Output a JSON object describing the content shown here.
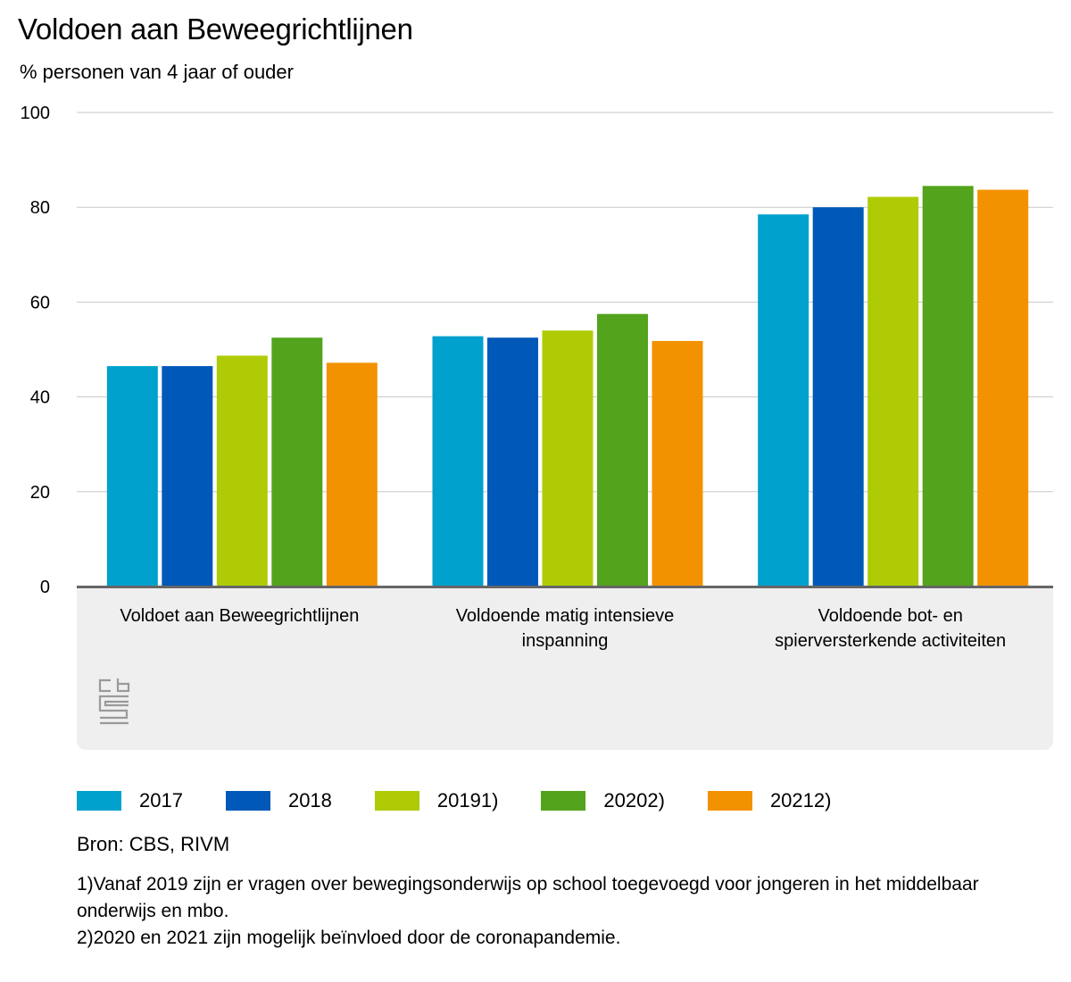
{
  "chart_data": {
    "type": "bar",
    "title": "Voldoen aan Beweegrichtlijnen",
    "subtitle": "% personen van 4 jaar of ouder",
    "categories": [
      [
        "Voldoet aan Beweegrichtlijnen"
      ],
      [
        "Voldoende matig intensieve",
        "inspanning"
      ],
      [
        "Voldoende bot- en",
        "spierversterkende activiteiten"
      ]
    ],
    "series": [
      {
        "name": "2017",
        "color": "#00a1cd",
        "values": [
          46.5,
          52.8,
          78.5
        ]
      },
      {
        "name": "2018",
        "color": "#0058b8",
        "values": [
          46.5,
          52.5,
          80.0
        ]
      },
      {
        "name": "20191)",
        "color": "#afcb05",
        "values": [
          48.7,
          54.0,
          82.2
        ]
      },
      {
        "name": "20202)",
        "color": "#53a31d",
        "values": [
          52.5,
          57.5,
          84.5
        ]
      },
      {
        "name": "20212)",
        "color": "#f39200",
        "values": [
          47.2,
          51.8,
          83.7
        ]
      }
    ],
    "ylim": [
      0,
      100
    ],
    "yticks": [
      0,
      20,
      40,
      60,
      80,
      100
    ],
    "grid": true,
    "legend_position": "bottom-left"
  },
  "source": "Bron: CBS, RIVM",
  "notes": [
    "1)Vanaf 2019 zijn er vragen over bewegingsonderwijs op school toegevoegd voor jongeren in het middelbaar onderwijs en mbo.",
    "2)2020 en 2021 zijn mogelijk beïnvloed door de coronapandemie."
  ],
  "logo_icon": "cbs-logo-icon"
}
